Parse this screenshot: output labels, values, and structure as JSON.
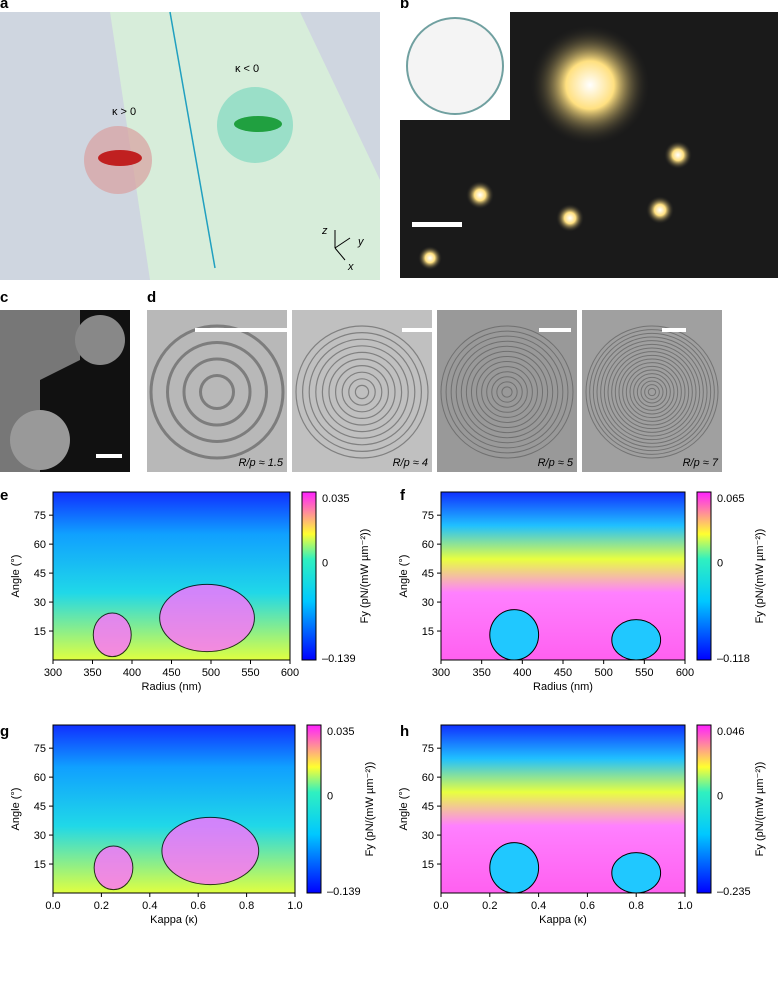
{
  "panels": {
    "a": {
      "label": "a",
      "annotations": [
        "κ > 0",
        "κ < 0",
        "z",
        "y",
        "x"
      ]
    },
    "b": {
      "label": "b"
    },
    "c": {
      "label": "c"
    },
    "d": {
      "label": "d",
      "captions": [
        "R/p ≈ 1.5",
        "R/p ≈ 4",
        "R/p ≈ 5",
        "R/p ≈ 7"
      ]
    },
    "e": {
      "label": "e",
      "xlabel": "Radius (nm)",
      "ylabel": "Angle (°)",
      "xticks": [
        "300",
        "350",
        "400",
        "450",
        "500",
        "550",
        "600"
      ],
      "yticks": [
        "15",
        "30",
        "45",
        "60",
        "75"
      ],
      "colorbar": {
        "ticks": [
          "0.035",
          "0",
          "–0.139"
        ],
        "label": "Fy (pN/(mW µm⁻²))"
      }
    },
    "f": {
      "label": "f",
      "xlabel": "Radius (nm)",
      "ylabel": "Angle (°)",
      "xticks": [
        "300",
        "350",
        "400",
        "450",
        "500",
        "550",
        "600"
      ],
      "yticks": [
        "15",
        "30",
        "45",
        "60",
        "75"
      ],
      "colorbar": {
        "ticks": [
          "0.065",
          "0",
          "–0.118"
        ],
        "label": "Fy (pN/(mW µm⁻²))"
      }
    },
    "g": {
      "label": "g",
      "xlabel": "Kappa (κ)",
      "ylabel": "Angle (°)",
      "xticks": [
        "0.0",
        "0.2",
        "0.4",
        "0.6",
        "0.8",
        "1.0"
      ],
      "yticks": [
        "15",
        "30",
        "45",
        "60",
        "75"
      ],
      "colorbar": {
        "ticks": [
          "0.035",
          "0",
          "–0.139"
        ],
        "label": "Fy (pN/(mW µm⁻²))"
      }
    },
    "h": {
      "label": "h",
      "xlabel": "Kappa (κ)",
      "ylabel": "Angle (°)",
      "xticks": [
        "0.0",
        "0.2",
        "0.4",
        "0.6",
        "0.8",
        "1.0"
      ],
      "yticks": [
        "15",
        "30",
        "45",
        "60",
        "75"
      ],
      "colorbar": {
        "ticks": [
          "0.046",
          "0",
          "–0.235"
        ],
        "label": "Fy (pN/(mW µm⁻²))"
      }
    }
  }
}
